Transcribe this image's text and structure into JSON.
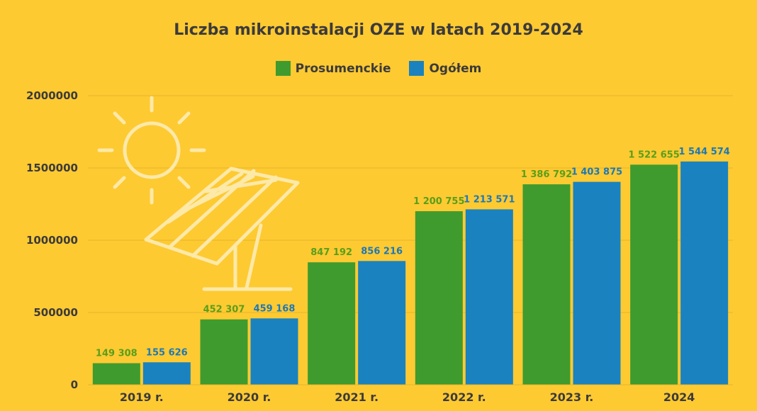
{
  "chart_data": {
    "type": "bar",
    "title": "Liczba mikroinstalacji OZE w latach 2019-2024",
    "categories": [
      "2019 r.",
      "2020 r.",
      "2021 r.",
      "2022 r.",
      "2023 r.",
      "2024"
    ],
    "series": [
      {
        "name": "Prosumenckie",
        "color": "#3f9b2d",
        "label_color": "#5a9e1a",
        "values": [
          149308,
          452307,
          847192,
          1200755,
          1386792,
          1522655
        ],
        "labels": [
          "149 308",
          "452 307",
          "847 192",
          "1 200 755",
          "1 386 792",
          "1 522 655"
        ]
      },
      {
        "name": "Ogółem",
        "color": "#1a82bf",
        "label_color": "#1f78b4",
        "values": [
          155626,
          459168,
          856216,
          1213571,
          1403875,
          1544574
        ],
        "labels": [
          "155 626",
          "459 168",
          "856 216",
          "1 213 571",
          "1 403 875",
          "1 544 574"
        ]
      }
    ],
    "ylim": [
      0,
      2000000
    ],
    "yticks": [
      "0",
      "500000",
      "1000000",
      "1500000",
      "2000000"
    ],
    "grid": true,
    "legend_position": "top-center",
    "decoration_icons": [
      "sun-icon",
      "solar-panel-icon"
    ]
  }
}
